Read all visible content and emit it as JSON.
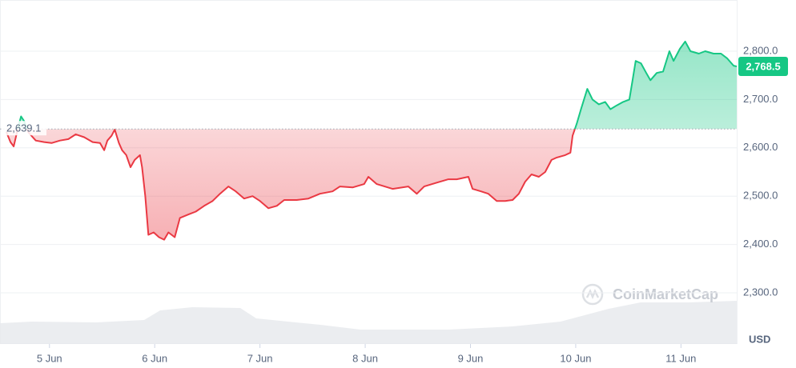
{
  "chart_data": {
    "type": "line",
    "x": [
      -0.41,
      -0.37,
      -0.34,
      -0.3,
      -0.27,
      -0.24,
      -0.2,
      -0.13,
      -0.05,
      0.02,
      0.1,
      0.18,
      0.25,
      0.33,
      0.41,
      0.48,
      0.52,
      0.55,
      0.59,
      0.62,
      0.66,
      0.69,
      0.73,
      0.77,
      0.81,
      0.86,
      0.88,
      0.91,
      0.94,
      0.99,
      1.04,
      1.09,
      1.13,
      1.19,
      1.24,
      1.32,
      1.39,
      1.47,
      1.55,
      1.62,
      1.7,
      1.77,
      1.85,
      1.93,
      2.0,
      2.08,
      2.16,
      2.23,
      2.35,
      2.46,
      2.57,
      2.69,
      2.76,
      2.88,
      2.99,
      3.03,
      3.11,
      3.26,
      3.41,
      3.49,
      3.56,
      3.68,
      3.79,
      3.87,
      3.98,
      4.02,
      4.1,
      4.17,
      4.25,
      4.33,
      4.4,
      4.46,
      4.52,
      4.58,
      4.65,
      4.71,
      4.77,
      4.82,
      4.9,
      4.95,
      4.97,
      5.01,
      5.05,
      5.11,
      5.16,
      5.22,
      5.28,
      5.33,
      5.39,
      5.45,
      5.51,
      5.54,
      5.57,
      5.62,
      5.67,
      5.71,
      5.77,
      5.83,
      5.89,
      5.93,
      5.99,
      6.04,
      6.09,
      6.17,
      6.23,
      6.31,
      6.38,
      6.44,
      6.5,
      6.53
    ],
    "values": [
      2633,
      2612,
      2603,
      2640,
      2665,
      2655,
      2632,
      2615,
      2612,
      2610,
      2615,
      2618,
      2628,
      2622,
      2612,
      2610,
      2595,
      2615,
      2625,
      2638,
      2610,
      2595,
      2585,
      2560,
      2575,
      2585,
      2560,
      2500,
      2420,
      2425,
      2415,
      2410,
      2425,
      2415,
      2455,
      2462,
      2468,
      2480,
      2490,
      2505,
      2520,
      2510,
      2495,
      2500,
      2490,
      2475,
      2480,
      2492,
      2492,
      2495,
      2505,
      2510,
      2520,
      2518,
      2525,
      2540,
      2525,
      2515,
      2520,
      2505,
      2520,
      2528,
      2535,
      2535,
      2540,
      2515,
      2510,
      2505,
      2490,
      2490,
      2492,
      2505,
      2530,
      2545,
      2540,
      2550,
      2575,
      2580,
      2585,
      2590,
      2625,
      2650,
      2680,
      2722,
      2700,
      2690,
      2695,
      2680,
      2688,
      2695,
      2700,
      2740,
      2780,
      2775,
      2755,
      2740,
      2755,
      2758,
      2800,
      2780,
      2805,
      2820,
      2800,
      2795,
      2800,
      2795,
      2795,
      2785,
      2770,
      2768.5
    ],
    "up_color": "#16c784",
    "down_color": "#ea3943",
    "baseline": {
      "value": 2639.1,
      "label": "2,639.1"
    },
    "last_price": {
      "value": 2768.5,
      "label": "2,768.5"
    },
    "xlim": [
      -0.47,
      6.53
    ],
    "xticks": [
      {
        "value": 0,
        "label": "5 Jun"
      },
      {
        "value": 1,
        "label": "6 Jun"
      },
      {
        "value": 2,
        "label": "7 Jun"
      },
      {
        "value": 3,
        "label": "8 Jun"
      },
      {
        "value": 4,
        "label": "9 Jun"
      },
      {
        "value": 5,
        "label": "10 Jun"
      },
      {
        "value": 6,
        "label": "11 Jun"
      }
    ],
    "ylim": [
      2194,
      2906
    ],
    "yticks": [
      {
        "value": 2300,
        "label": "2,300.0"
      },
      {
        "value": 2400,
        "label": "2,400.0"
      },
      {
        "value": 2500,
        "label": "2,500.0"
      },
      {
        "value": 2600,
        "label": "2,600.0"
      },
      {
        "value": 2700,
        "label": "2,700.0"
      },
      {
        "value": 2800,
        "label": "2,800.0"
      }
    ],
    "grid": true,
    "currency": "USD",
    "watermark": "CoinMarketCap"
  }
}
